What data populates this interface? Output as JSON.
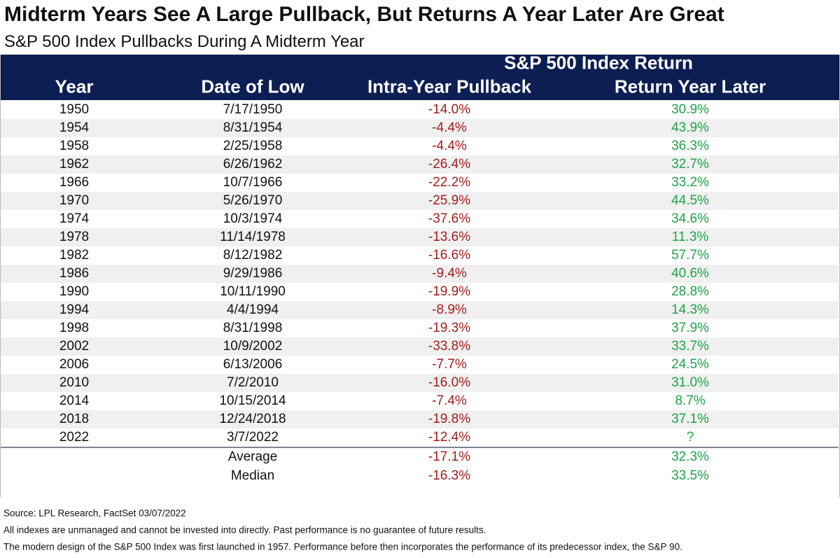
{
  "header": {
    "title": "Midterm Years See A Large Pullback, But Returns A Year Later Are Great",
    "subtitle": "S&P 500 Index Pullbacks During A Midterm Year"
  },
  "table": {
    "group_header": "S&P 500 Index Return",
    "columns": [
      "Year",
      "Date of Low",
      "Intra-Year Pullback",
      "Return Year Later"
    ],
    "rows": [
      [
        "1950",
        "7/17/1950",
        "-14.0%",
        "30.9%"
      ],
      [
        "1954",
        "8/31/1954",
        "-4.4%",
        "43.9%"
      ],
      [
        "1958",
        "2/25/1958",
        "-4.4%",
        "36.3%"
      ],
      [
        "1962",
        "6/26/1962",
        "-26.4%",
        "32.7%"
      ],
      [
        "1966",
        "10/7/1966",
        "-22.2%",
        "33.2%"
      ],
      [
        "1970",
        "5/26/1970",
        "-25.9%",
        "44.5%"
      ],
      [
        "1974",
        "10/3/1974",
        "-37.6%",
        "34.6%"
      ],
      [
        "1978",
        "11/14/1978",
        "-13.6%",
        "11.3%"
      ],
      [
        "1982",
        "8/12/1982",
        "-16.6%",
        "57.7%"
      ],
      [
        "1986",
        "9/29/1986",
        "-9.4%",
        "40.6%"
      ],
      [
        "1990",
        "10/11/1990",
        "-19.9%",
        "28.8%"
      ],
      [
        "1994",
        "4/4/1994",
        "-8.9%",
        "14.3%"
      ],
      [
        "1998",
        "8/31/1998",
        "-19.3%",
        "37.9%"
      ],
      [
        "2002",
        "10/9/2002",
        "-33.8%",
        "33.7%"
      ],
      [
        "2006",
        "6/13/2006",
        "-7.7%",
        "24.5%"
      ],
      [
        "2010",
        "7/2/2010",
        "-16.0%",
        "31.0%"
      ],
      [
        "2014",
        "10/15/2014",
        "-7.4%",
        "8.7%"
      ],
      [
        "2018",
        "12/24/2018",
        "-19.8%",
        "37.1%"
      ],
      [
        "2022",
        "3/7/2022",
        "-12.4%",
        "?"
      ]
    ],
    "summary": [
      {
        "label": "Average",
        "pullback": "-17.1%",
        "return": "32.3%"
      },
      {
        "label": "Median",
        "pullback": "-16.3%",
        "return": "33.5%"
      }
    ]
  },
  "footnotes": [
    "Source: LPL Research, FactSet 03/07/2022",
    "All indexes are unmanaged and cannot be invested into directly. Past performance is no guarantee of future results.",
    "The modern design of the S&P 500 Index was first launched in 1957. Performance before then incorporates the performance of its predecessor index, the S&P 90."
  ]
}
